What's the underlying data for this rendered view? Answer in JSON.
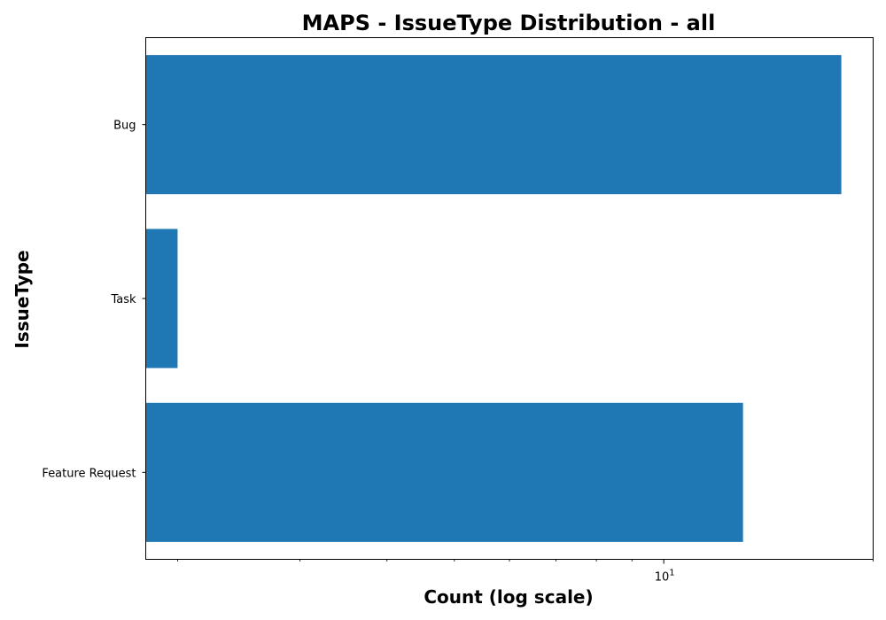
{
  "chart_data": {
    "type": "bar",
    "orientation": "horizontal",
    "title": "MAPS - IssueType Distribution - all",
    "xlabel": "Count (log scale)",
    "ylabel": "IssueType",
    "x_scale": "log",
    "xlim": [
      1.8,
      20
    ],
    "x_tick_labels": [
      {
        "base": "10",
        "exponent": "1",
        "value": 10
      }
    ],
    "categories": [
      "Bug",
      "Task",
      "Feature Request"
    ],
    "values": [
      18,
      2,
      13
    ],
    "bar_color": "#1f77b4",
    "grid": false,
    "legend": "none"
  }
}
